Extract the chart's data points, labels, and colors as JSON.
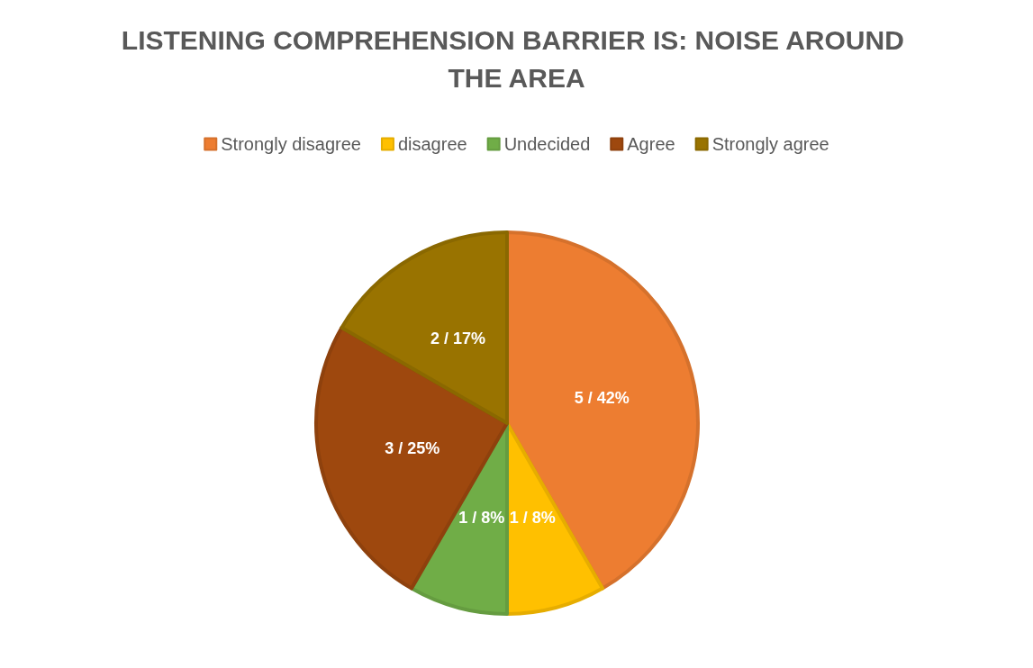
{
  "chart_data": {
    "type": "pie",
    "title": "LISTENING COMPREHENSION BARRIER IS: NOISE AROUND THE AREA",
    "categories": [
      "Strongly disagree",
      "disagree",
      "Undecided",
      "Agree",
      "Strongly agree"
    ],
    "values": [
      5,
      1,
      1,
      3,
      2
    ],
    "value_labels": [
      "5 / 42%",
      "1 / 8%",
      "1 / 8%",
      "3 / 25%",
      "2 / 17%"
    ],
    "colors": [
      "#ed7d31",
      "#ffc000",
      "#70ad47",
      "#9e480e",
      "#997300"
    ],
    "legend": "top"
  }
}
